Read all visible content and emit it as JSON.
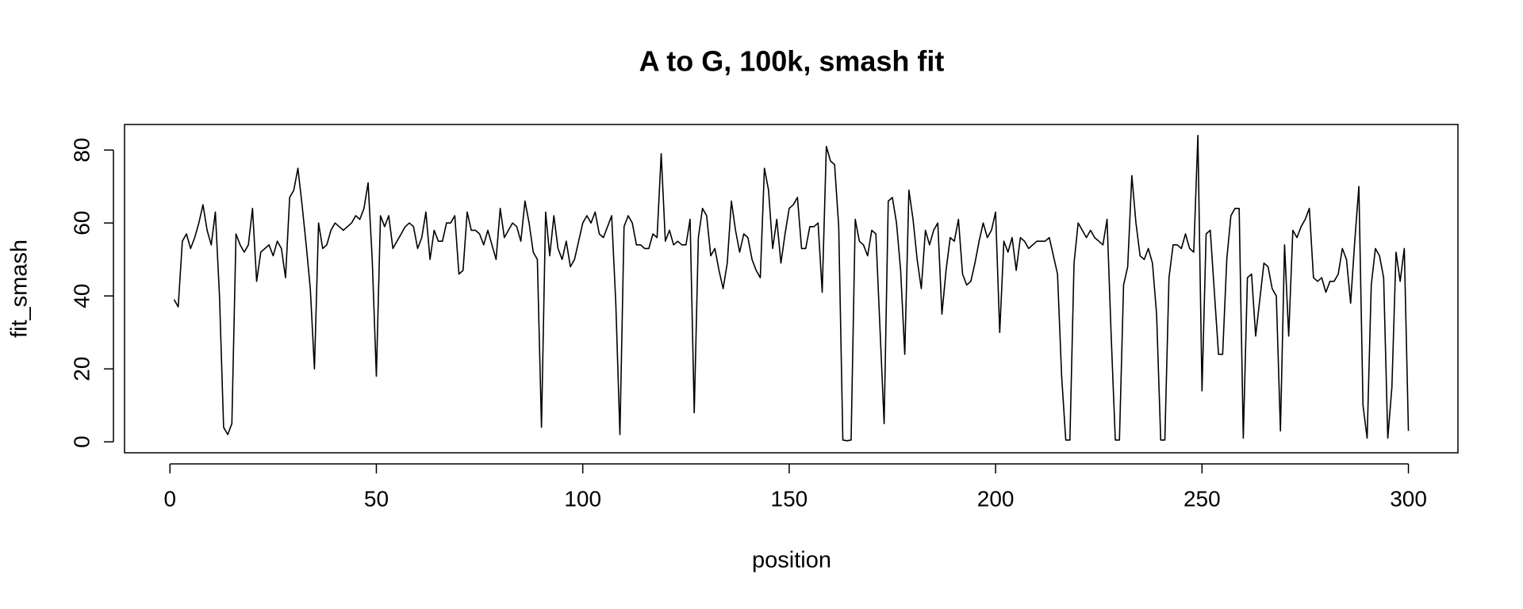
{
  "chart_data": {
    "type": "line",
    "title": "A to G, 100k, smash fit",
    "xlabel": "position",
    "ylabel": "fit_smash",
    "x": [
      1,
      2,
      3,
      4,
      5,
      6,
      7,
      8,
      9,
      10,
      11,
      12,
      13,
      14,
      15,
      16,
      17,
      18,
      19,
      20,
      21,
      22,
      23,
      24,
      25,
      26,
      27,
      28,
      29,
      30,
      31,
      32,
      33,
      34,
      35,
      36,
      37,
      38,
      39,
      40,
      41,
      42,
      43,
      44,
      45,
      46,
      47,
      48,
      49,
      50,
      51,
      52,
      53,
      54,
      55,
      56,
      57,
      58,
      59,
      60,
      61,
      62,
      63,
      64,
      65,
      66,
      67,
      68,
      69,
      70,
      71,
      72,
      73,
      74,
      75,
      76,
      77,
      78,
      79,
      80,
      81,
      82,
      83,
      84,
      85,
      86,
      87,
      88,
      89,
      90,
      91,
      92,
      93,
      94,
      95,
      96,
      97,
      98,
      99,
      100,
      101,
      102,
      103,
      104,
      105,
      106,
      107,
      108,
      109,
      110,
      111,
      112,
      113,
      114,
      115,
      116,
      117,
      118,
      119,
      120,
      121,
      122,
      123,
      124,
      125,
      126,
      127,
      128,
      129,
      130,
      131,
      132,
      133,
      134,
      135,
      136,
      137,
      138,
      139,
      140,
      141,
      142,
      143,
      144,
      145,
      146,
      147,
      148,
      149,
      150,
      151,
      152,
      153,
      154,
      155,
      156,
      157,
      158,
      159,
      160,
      161,
      162,
      163,
      164,
      165,
      166,
      167,
      168,
      169,
      170,
      171,
      172,
      173,
      174,
      175,
      176,
      177,
      178,
      179,
      180,
      181,
      182,
      183,
      184,
      185,
      186,
      187,
      188,
      189,
      190,
      191,
      192,
      193,
      194,
      195,
      196,
      197,
      198,
      199,
      200,
      201,
      202,
      203,
      204,
      205,
      206,
      207,
      208,
      209,
      210,
      211,
      212,
      213,
      214,
      215,
      216,
      217,
      218,
      219,
      220,
      221,
      222,
      223,
      224,
      225,
      226,
      227,
      228,
      229,
      230,
      231,
      232,
      233,
      234,
      235,
      236,
      237,
      238,
      239,
      240,
      241,
      242,
      243,
      244,
      245,
      246,
      247,
      248,
      249,
      250,
      251,
      252,
      253,
      254,
      255,
      256,
      257,
      258,
      259,
      260,
      261,
      262,
      263,
      264,
      265,
      266,
      267,
      268,
      269,
      270,
      271,
      272,
      273,
      274,
      275,
      276,
      277,
      278,
      279,
      280,
      281,
      282,
      283,
      284,
      285,
      286,
      287,
      288,
      289,
      290,
      291,
      292,
      293,
      294,
      295,
      296,
      297,
      298,
      299,
      300
    ],
    "values": [
      39,
      37,
      55,
      57,
      53,
      56,
      60,
      65,
      58,
      54,
      63,
      40,
      4,
      2,
      5,
      57,
      54,
      52,
      54,
      64,
      44,
      52,
      53,
      54,
      51,
      55,
      53,
      45,
      67,
      69,
      75,
      65,
      54,
      42,
      20,
      60,
      53,
      54,
      58,
      60,
      59,
      58,
      59,
      60,
      62,
      61,
      64,
      71,
      50,
      18,
      62,
      59,
      62,
      53,
      55,
      57,
      59,
      60,
      59,
      53,
      56,
      63,
      50,
      58,
      55,
      55,
      60,
      60,
      62,
      46,
      47,
      63,
      58,
      58,
      57,
      54,
      58,
      54,
      50,
      64,
      56,
      58,
      60,
      59,
      55,
      66,
      60,
      52,
      50,
      4,
      63,
      51,
      62,
      53,
      50,
      55,
      48,
      50,
      55,
      60,
      62,
      60,
      63,
      57,
      56,
      59,
      62,
      38,
      2,
      59,
      62,
      60,
      54,
      54,
      53,
      53,
      57,
      56,
      79,
      55,
      58,
      54,
      55,
      54,
      54,
      61,
      8,
      56,
      64,
      62,
      51,
      53,
      47,
      42,
      49,
      66,
      58,
      52,
      57,
      56,
      50,
      47,
      45,
      75,
      69,
      53,
      61,
      49,
      57,
      64,
      65,
      67,
      53,
      53,
      59,
      59,
      60,
      41,
      81,
      77,
      76,
      59,
      0.5,
      0.3,
      0.5,
      61,
      55,
      54,
      51,
      58,
      57,
      31,
      5,
      66,
      67,
      60,
      47,
      24,
      69,
      61,
      50,
      42,
      58,
      54,
      58,
      60,
      35,
      47,
      56,
      55,
      61,
      46,
      43,
      44,
      49,
      55,
      60,
      56,
      58,
      63,
      30,
      55,
      52,
      56,
      47,
      56,
      55,
      53,
      54,
      55,
      55,
      55,
      56,
      51,
      46,
      18,
      0.5,
      0.5,
      49,
      60,
      58,
      56,
      58,
      56,
      55,
      54,
      61,
      29,
      0.5,
      0.5,
      43,
      48,
      73,
      60,
      51,
      50,
      53,
      49,
      35,
      0.5,
      0.5,
      45,
      54,
      54,
      53,
      57,
      53,
      52,
      84,
      14,
      57,
      58,
      41,
      24,
      24,
      50,
      62,
      64,
      64,
      1,
      45,
      46,
      29,
      39,
      49,
      48,
      42,
      40,
      3,
      54,
      29,
      58,
      56,
      59,
      61,
      64,
      45,
      44,
      45,
      41,
      44,
      44,
      46,
      53,
      50,
      38,
      55,
      70,
      10,
      1,
      43,
      53,
      51,
      45,
      1,
      15,
      52,
      44,
      53,
      3
    ],
    "color": "#000000",
    "xlim": [
      -11,
      312
    ],
    "xticks": [
      0,
      50,
      100,
      150,
      200,
      250,
      300
    ],
    "ylim": [
      -3,
      87
    ],
    "yticks": [
      0,
      20,
      40,
      60,
      80
    ]
  }
}
